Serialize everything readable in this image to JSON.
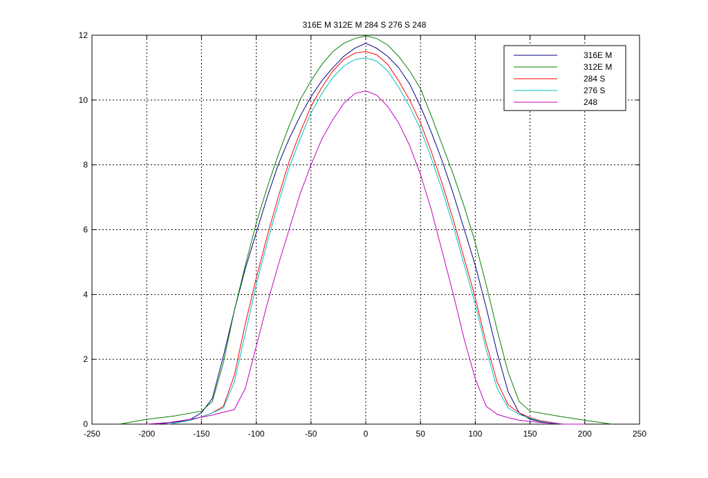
{
  "chart_data": {
    "type": "line",
    "title": "316E M 312E M 284 S 276 S 248",
    "xlabel": "",
    "ylabel": "",
    "xlim": [
      -250,
      250
    ],
    "ylim": [
      0,
      12
    ],
    "xticks": [
      -250,
      -200,
      -150,
      -100,
      -50,
      0,
      50,
      100,
      150,
      200,
      250
    ],
    "yticks": [
      0,
      2,
      4,
      6,
      8,
      10,
      12
    ],
    "grid": true,
    "grid_style": "dotted",
    "legend_position": "top-right",
    "series": [
      {
        "name": "316E M",
        "color": "#000080",
        "x": [
          -190,
          -170,
          -160,
          -150,
          -140,
          -130,
          -120,
          -110,
          -100,
          -90,
          -80,
          -70,
          -60,
          -50,
          -40,
          -30,
          -20,
          -10,
          0,
          10,
          20,
          30,
          40,
          50,
          60,
          70,
          80,
          90,
          100,
          110,
          120,
          130,
          140,
          150,
          160,
          170,
          180,
          190
        ],
        "y": [
          0.0,
          0.08,
          0.15,
          0.35,
          0.8,
          2.1,
          3.5,
          4.8,
          5.9,
          7.0,
          8.0,
          8.8,
          9.5,
          10.1,
          10.6,
          11.0,
          11.35,
          11.6,
          11.75,
          11.6,
          11.35,
          11.0,
          10.5,
          9.8,
          9.0,
          8.1,
          7.1,
          6.0,
          4.9,
          3.6,
          2.2,
          1.0,
          0.35,
          0.15,
          0.07,
          0.02,
          0.0,
          0.0
        ]
      },
      {
        "name": "312E M",
        "color": "#008000",
        "x": [
          -225,
          -200,
          -175,
          -150,
          -140,
          -130,
          -120,
          -110,
          -100,
          -90,
          -80,
          -70,
          -60,
          -50,
          -40,
          -30,
          -20,
          -10,
          0,
          10,
          20,
          30,
          40,
          50,
          60,
          70,
          80,
          90,
          100,
          110,
          120,
          130,
          140,
          150,
          175,
          200,
          225
        ],
        "y": [
          0.0,
          0.15,
          0.25,
          0.4,
          0.7,
          1.9,
          3.5,
          4.9,
          6.2,
          7.3,
          8.3,
          9.2,
          10.0,
          10.6,
          11.1,
          11.5,
          11.75,
          11.9,
          11.98,
          11.9,
          11.7,
          11.35,
          10.9,
          10.35,
          9.5,
          8.6,
          7.7,
          6.7,
          5.6,
          4.3,
          2.9,
          1.6,
          0.7,
          0.4,
          0.25,
          0.12,
          0.0
        ]
      },
      {
        "name": "284 S",
        "color": "#ff0000",
        "x": [
          -180,
          -160,
          -150,
          -140,
          -130,
          -120,
          -110,
          -100,
          -90,
          -80,
          -70,
          -60,
          -50,
          -40,
          -30,
          -20,
          -10,
          0,
          10,
          20,
          30,
          40,
          50,
          60,
          70,
          80,
          90,
          100,
          110,
          120,
          130,
          140,
          150,
          160,
          180
        ],
        "y": [
          0.0,
          0.12,
          0.22,
          0.35,
          0.55,
          1.5,
          3.1,
          4.5,
          5.8,
          7.0,
          8.1,
          9.0,
          9.8,
          10.4,
          10.9,
          11.25,
          11.45,
          11.5,
          11.4,
          11.1,
          10.6,
          10.0,
          9.3,
          8.4,
          7.4,
          6.3,
          5.1,
          3.9,
          2.5,
          1.3,
          0.6,
          0.35,
          0.2,
          0.1,
          0.0
        ]
      },
      {
        "name": "276 S",
        "color": "#00bfbf",
        "x": [
          -180,
          -160,
          -150,
          -140,
          -130,
          -120,
          -110,
          -100,
          -90,
          -80,
          -70,
          -60,
          -50,
          -40,
          -30,
          -20,
          -10,
          0,
          10,
          20,
          30,
          40,
          50,
          60,
          70,
          80,
          90,
          100,
          110,
          120,
          130,
          140,
          150,
          160,
          180
        ],
        "y": [
          0.0,
          0.12,
          0.22,
          0.35,
          0.5,
          1.3,
          2.8,
          4.3,
          5.6,
          6.8,
          7.9,
          8.8,
          9.6,
          10.2,
          10.7,
          11.05,
          11.25,
          11.3,
          11.2,
          10.9,
          10.4,
          9.8,
          9.1,
          8.2,
          7.2,
          6.1,
          4.9,
          3.7,
          2.3,
          1.1,
          0.5,
          0.3,
          0.18,
          0.08,
          0.0
        ]
      },
      {
        "name": "248",
        "color": "#bf00bf",
        "x": [
          -200,
          -180,
          -160,
          -140,
          -120,
          -110,
          -100,
          -90,
          -80,
          -70,
          -60,
          -50,
          -40,
          -30,
          -20,
          -10,
          0,
          10,
          20,
          30,
          40,
          50,
          60,
          70,
          80,
          90,
          100,
          110,
          120,
          130,
          140,
          160,
          180,
          200
        ],
        "y": [
          0.0,
          0.05,
          0.15,
          0.28,
          0.45,
          1.1,
          2.4,
          3.7,
          4.9,
          6.0,
          7.1,
          8.0,
          8.8,
          9.4,
          9.9,
          10.2,
          10.28,
          10.15,
          9.8,
          9.3,
          8.6,
          7.7,
          6.6,
          5.3,
          4.0,
          2.6,
          1.4,
          0.55,
          0.3,
          0.2,
          0.12,
          0.05,
          0.0,
          0.0
        ]
      }
    ]
  }
}
